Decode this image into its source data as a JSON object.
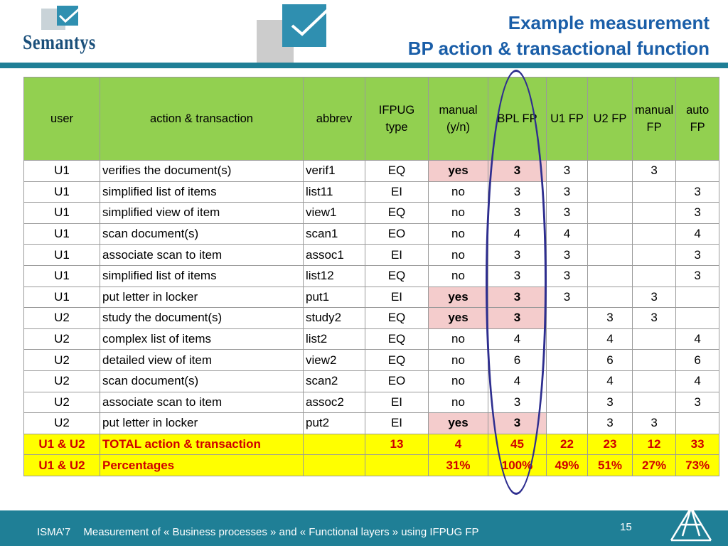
{
  "header": {
    "logo_text": "Semantys",
    "title_line1": "Example measurement",
    "title_line2": "BP action  & transactional function"
  },
  "table": {
    "columns": [
      "user",
      "action & transaction",
      "abbrev",
      "IFPUG type",
      "manual (y/n)",
      "BPL FP",
      "U1 FP",
      "U2 FP",
      "manual FP",
      "auto FP"
    ],
    "rows": [
      {
        "user": "U1",
        "action": "verifies the document(s)",
        "abbrev": "verif1",
        "type": "EQ",
        "manual": "yes",
        "bpl": "3",
        "u1": "3",
        "u2": "",
        "manual_fp": "3",
        "auto_fp": "",
        "highlight": true
      },
      {
        "user": "U1",
        "action": "simplified list of items",
        "abbrev": "list11",
        "type": "EI",
        "manual": "no",
        "bpl": "3",
        "u1": "3",
        "u2": "",
        "manual_fp": "",
        "auto_fp": "3",
        "highlight": false
      },
      {
        "user": "U1",
        "action": "simplified view of item",
        "abbrev": "view1",
        "type": "EQ",
        "manual": "no",
        "bpl": "3",
        "u1": "3",
        "u2": "",
        "manual_fp": "",
        "auto_fp": "3",
        "highlight": false
      },
      {
        "user": "U1",
        "action": "scan document(s)",
        "abbrev": "scan1",
        "type": "EO",
        "manual": "no",
        "bpl": "4",
        "u1": "4",
        "u2": "",
        "manual_fp": "",
        "auto_fp": "4",
        "highlight": false
      },
      {
        "user": "U1",
        "action": "associate scan to item",
        "abbrev": "assoc1",
        "type": "EI",
        "manual": "no",
        "bpl": "3",
        "u1": "3",
        "u2": "",
        "manual_fp": "",
        "auto_fp": "3",
        "highlight": false
      },
      {
        "user": "U1",
        "action": "simplified list of items",
        "abbrev": "list12",
        "type": "EQ",
        "manual": "no",
        "bpl": "3",
        "u1": "3",
        "u2": "",
        "manual_fp": "",
        "auto_fp": "3",
        "highlight": false
      },
      {
        "user": "U1",
        "action": "put letter in locker",
        "abbrev": "put1",
        "type": "EI",
        "manual": "yes",
        "bpl": "3",
        "u1": "3",
        "u2": "",
        "manual_fp": "3",
        "auto_fp": "",
        "highlight": true
      },
      {
        "user": "U2",
        "action": "study the document(s)",
        "abbrev": "study2",
        "type": "EQ",
        "manual": "yes",
        "bpl": "3",
        "u1": "",
        "u2": "3",
        "manual_fp": "3",
        "auto_fp": "",
        "highlight": true
      },
      {
        "user": "U2",
        "action": "complex list of items",
        "abbrev": "list2",
        "type": "EQ",
        "manual": "no",
        "bpl": "4",
        "u1": "",
        "u2": "4",
        "manual_fp": "",
        "auto_fp": "4",
        "highlight": false
      },
      {
        "user": "U2",
        "action": "detailed view of item",
        "abbrev": "view2",
        "type": "EQ",
        "manual": "no",
        "bpl": "6",
        "u1": "",
        "u2": "6",
        "manual_fp": "",
        "auto_fp": "6",
        "highlight": false
      },
      {
        "user": "U2",
        "action": "scan document(s)",
        "abbrev": "scan2",
        "type": "EO",
        "manual": "no",
        "bpl": "4",
        "u1": "",
        "u2": "4",
        "manual_fp": "",
        "auto_fp": "4",
        "highlight": false
      },
      {
        "user": "U2",
        "action": "associate scan to item",
        "abbrev": "assoc2",
        "type": "EI",
        "manual": "no",
        "bpl": "3",
        "u1": "",
        "u2": "3",
        "manual_fp": "",
        "auto_fp": "3",
        "highlight": false
      },
      {
        "user": "U2",
        "action": "put letter in locker",
        "abbrev": "put2",
        "type": "EI",
        "manual": "yes",
        "bpl": "3",
        "u1": "",
        "u2": "3",
        "manual_fp": "3",
        "auto_fp": "",
        "highlight": true
      }
    ],
    "total_row": {
      "user": "U1 & U2",
      "action": "TOTAL action & transaction",
      "abbrev": "",
      "type": "13",
      "manual": "4",
      "bpl": "45",
      "u1": "22",
      "u2": "23",
      "manual_fp": "12",
      "auto_fp": "33"
    },
    "percent_row": {
      "user": "U1 & U2",
      "action": "Percentages",
      "abbrev": "",
      "type": "",
      "manual": "31%",
      "bpl": "100%",
      "u1": "49%",
      "u2": "51%",
      "manual_fp": "27%",
      "auto_fp": "73%"
    }
  },
  "footer": {
    "conference": "ISMA’7",
    "subtitle": "Measurement of « Business processes » and « Functional layers » using  IFPUG  FP",
    "page_number": "15"
  },
  "colors": {
    "header_green": "#92d050",
    "highlight_pink": "#f4cccc",
    "total_yellow": "#ffff00",
    "total_text_red": "#d00000",
    "band_teal": "#1f7f96",
    "title_blue": "#1a5ea8",
    "oval_navy": "#2e2e8f"
  }
}
